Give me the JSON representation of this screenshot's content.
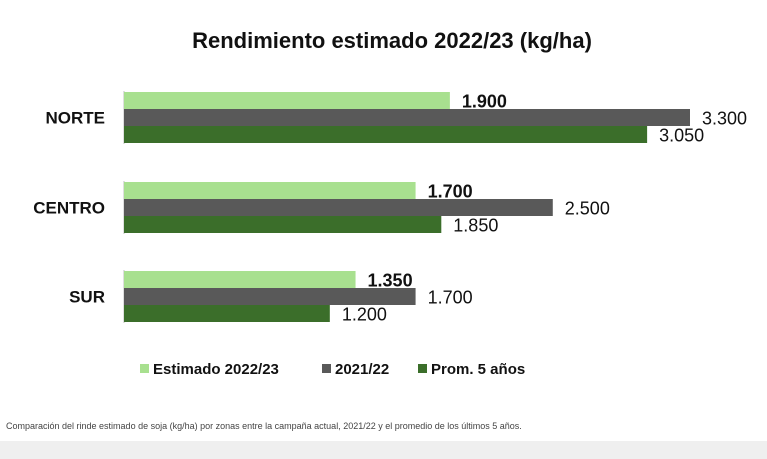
{
  "chart_data": {
    "type": "bar",
    "orientation": "horizontal",
    "title": "Rendimiento estimado 2022/23 (kg/ha)",
    "categories": [
      "NORTE",
      "CENTRO",
      "SUR"
    ],
    "series": [
      {
        "name": "Estimado 2022/23",
        "color": "#a8e08f",
        "values": [
          1900,
          1700,
          1350
        ],
        "labels": [
          "1.900",
          "1.700",
          "1.350"
        ],
        "label_bold": true
      },
      {
        "name": "2021/22",
        "color": "#595959",
        "values": [
          3300,
          2500,
          1700
        ],
        "labels": [
          "3.300",
          "2.500",
          "1.700"
        ],
        "label_bold": false
      },
      {
        "name": "Prom. 5 años",
        "color": "#3b6e2a",
        "values": [
          3050,
          1850,
          1200
        ],
        "labels": [
          "3.050",
          "1.850",
          "1.200"
        ],
        "label_bold": false
      }
    ],
    "xlim": [
      0,
      3300
    ],
    "grid": false,
    "legend_position": "bottom"
  },
  "caption": "Comparación del rinde estimado de soja (kg/ha) por zonas entre la campaña actual, 2021/22 y el promedio de los últimos 5 años."
}
